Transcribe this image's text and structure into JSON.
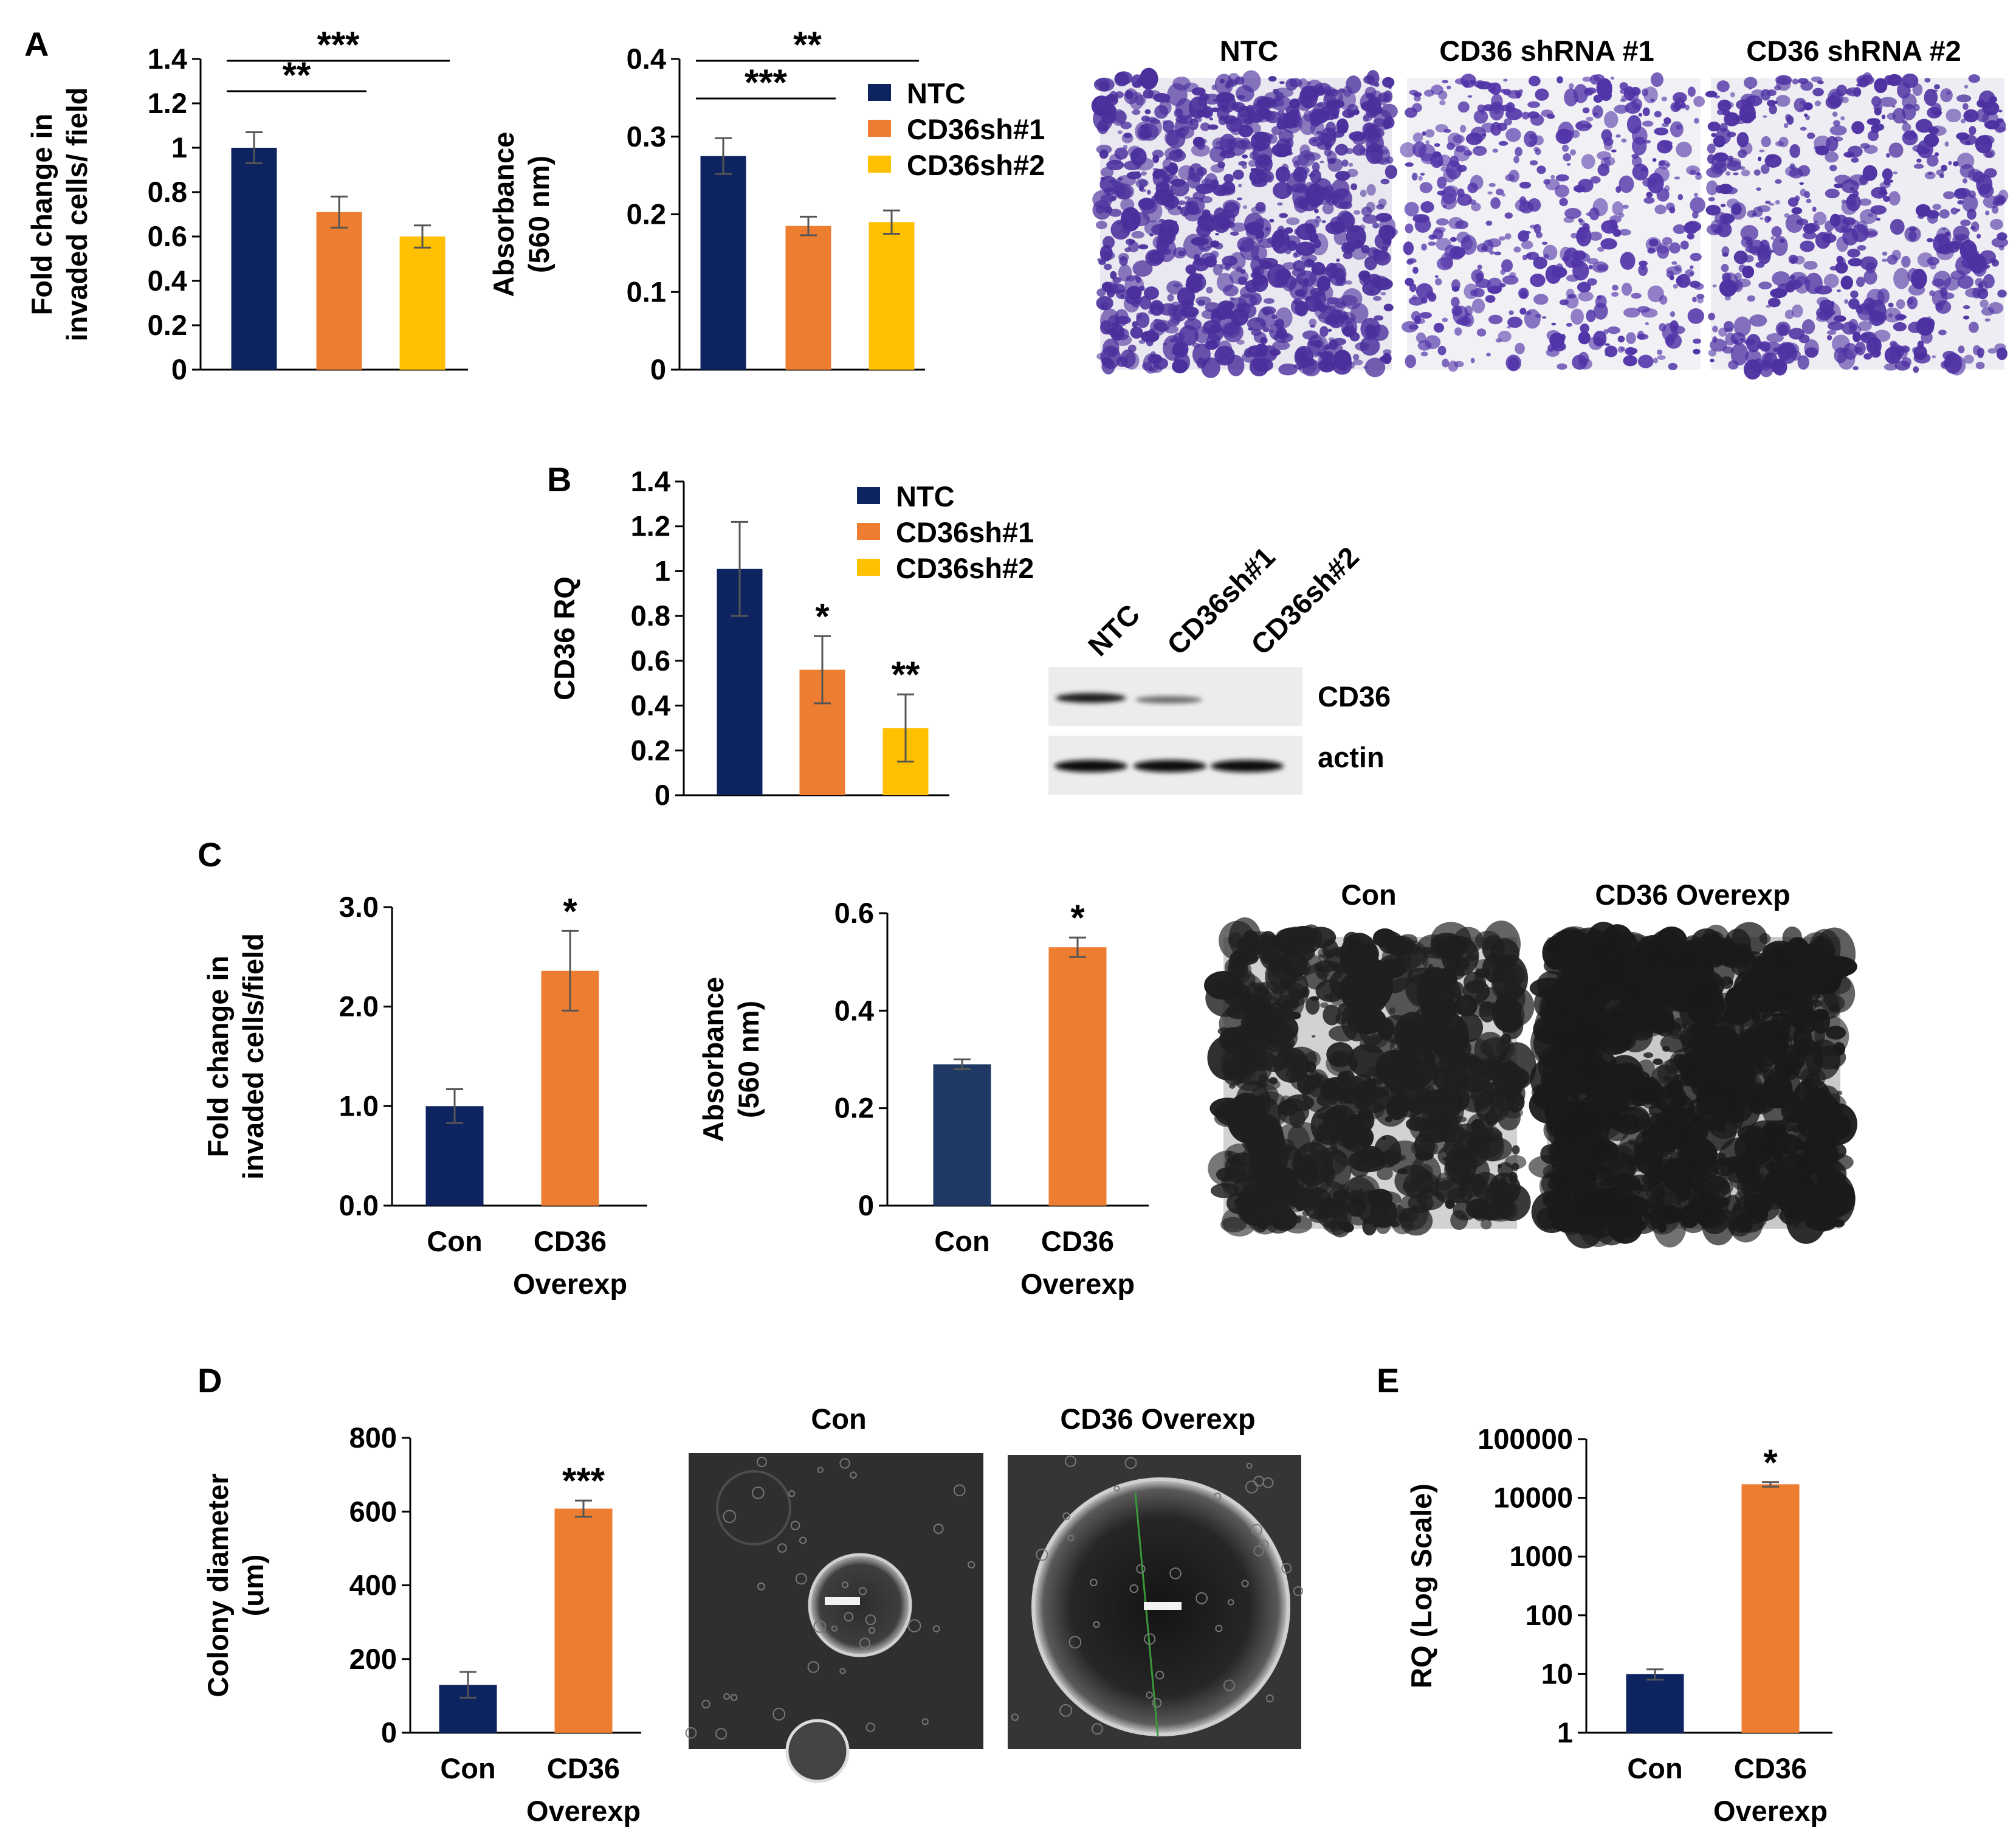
{
  "colors": {
    "ntc": "#0d2461",
    "sh1": "#ed7d31",
    "sh2": "#ffc000",
    "con": "#0d2461",
    "con_alt": "#1f3864",
    "overexp": "#ed7d31"
  },
  "legend": {
    "items": [
      "NTC",
      "CD36sh#1",
      "CD36sh#2"
    ]
  },
  "panelA": {
    "label": "A",
    "image_headers": [
      "NTC",
      "CD36 shRNA #1",
      "CD36 shRNA #2"
    ]
  },
  "panelB": {
    "label": "B",
    "blot": {
      "lanes": [
        "NTC",
        "CD36sh#1",
        "CD36sh#2"
      ],
      "rows": [
        "CD36",
        "actin"
      ]
    }
  },
  "panelC": {
    "label": "C",
    "image_headers": [
      "Con",
      "CD36 Overexp"
    ]
  },
  "panelD": {
    "label": "D",
    "image_headers": [
      "Con",
      "CD36 Overexp"
    ]
  },
  "panelE": {
    "label": "E"
  },
  "chart_data": [
    {
      "id": "A1",
      "type": "bar",
      "categories": [
        "NTC",
        "CD36sh#1",
        "CD36sh#2"
      ],
      "values": [
        1.0,
        0.71,
        0.6
      ],
      "errors": [
        0.07,
        0.07,
        0.05
      ],
      "ylabel": [
        "Fold change in",
        "invaded cells/ field"
      ],
      "ylim": [
        0,
        1.4
      ],
      "ticks": [
        "0",
        "0.2",
        "0.4",
        "0.6",
        "0.8",
        "1",
        "1.2",
        "1.4"
      ],
      "significance": [
        {
          "from": 0,
          "to": 1,
          "label": "**"
        },
        {
          "from": 0,
          "to": 2,
          "label": "***"
        }
      ]
    },
    {
      "id": "A2",
      "type": "bar",
      "categories": [
        "NTC",
        "CD36sh#1",
        "CD36sh#2"
      ],
      "values": [
        0.275,
        0.185,
        0.19
      ],
      "errors": [
        0.023,
        0.012,
        0.015
      ],
      "ylabel": [
        "Absorbance",
        "(560 nm)"
      ],
      "ylim": [
        0,
        0.4
      ],
      "ticks": [
        "0",
        "0.1",
        "0.2",
        "0.3",
        "0.4"
      ],
      "significance": [
        {
          "from": 0,
          "to": 1,
          "label": "***"
        },
        {
          "from": 0,
          "to": 2,
          "label": "**"
        }
      ]
    },
    {
      "id": "B",
      "type": "bar",
      "categories": [
        "NTC",
        "CD36sh#1",
        "CD36sh#2"
      ],
      "values": [
        1.01,
        0.56,
        0.3
      ],
      "errors": [
        0.21,
        0.15,
        0.15
      ],
      "ylabel": [
        "CD36 RQ"
      ],
      "ylim": [
        0,
        1.4
      ],
      "ticks": [
        "0",
        "0.2",
        "0.4",
        "0.6",
        "0.8",
        "1",
        "1.2",
        "1.4"
      ],
      "marks": [
        "",
        "*",
        "**"
      ]
    },
    {
      "id": "C1",
      "type": "bar",
      "categories": [
        "Con",
        "CD36 Overexp"
      ],
      "xlabels": [
        [
          "Con"
        ],
        [
          "CD36",
          "Overexp"
        ]
      ],
      "values": [
        1.0,
        2.36
      ],
      "errors": [
        0.17,
        0.4
      ],
      "ylabel": [
        "Fold change in",
        "invaded cells/field"
      ],
      "ylim": [
        0,
        3.0
      ],
      "ticks": [
        "0.0",
        "1.0",
        "2.0",
        "3.0"
      ],
      "marks": [
        "",
        "*"
      ]
    },
    {
      "id": "C2",
      "type": "bar",
      "categories": [
        "Con",
        "CD36 Overexp"
      ],
      "xlabels": [
        [
          "Con"
        ],
        [
          "CD36",
          "Overexp"
        ]
      ],
      "values": [
        0.29,
        0.53
      ],
      "errors": [
        0.01,
        0.02
      ],
      "ylabel": [
        "Absorbance",
        "(560 nm)"
      ],
      "ylim": [
        0,
        0.6
      ],
      "ticks": [
        "0",
        "0.2",
        "0.4",
        "0.6"
      ],
      "marks": [
        "",
        "*"
      ]
    },
    {
      "id": "D",
      "type": "bar",
      "categories": [
        "Con",
        "CD36 Overexp"
      ],
      "xlabels": [
        [
          "Con"
        ],
        [
          "CD36",
          "Overexp"
        ]
      ],
      "values": [
        130,
        608
      ],
      "errors": [
        35,
        22
      ],
      "ylabel": [
        "Colony diameter",
        "(um)"
      ],
      "ylim": [
        0,
        800
      ],
      "ticks": [
        "0",
        "200",
        "400",
        "600",
        "800"
      ],
      "marks": [
        "",
        "***"
      ]
    },
    {
      "id": "E",
      "type": "bar",
      "yscale": "log",
      "categories": [
        "Con",
        "CD36 Overexp"
      ],
      "xlabels": [
        [
          "Con"
        ],
        [
          "CD36",
          "Overexp"
        ]
      ],
      "values": [
        10,
        17000
      ],
      "errors": [
        2,
        1500
      ],
      "ylabel": [
        "RQ (Log Scale)"
      ],
      "ylim": [
        1,
        100000
      ],
      "ticks": [
        "1",
        "10",
        "100",
        "1000",
        "10000",
        "100000"
      ],
      "marks": [
        "",
        "*"
      ]
    }
  ]
}
